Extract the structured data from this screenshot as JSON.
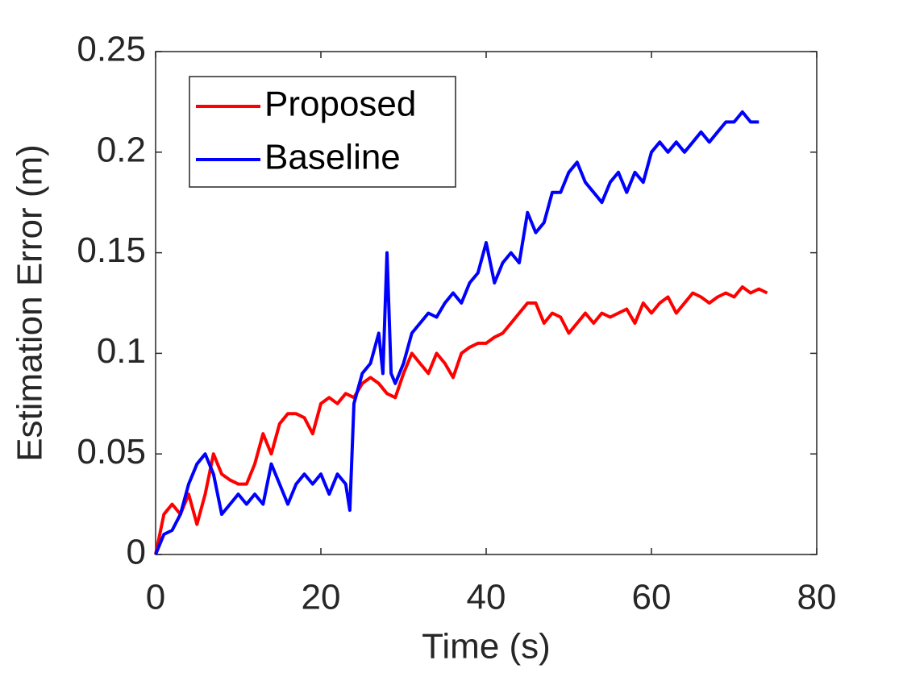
{
  "chart_data": {
    "type": "line",
    "xlabel": "Time (s)",
    "ylabel": "Estimation Error (m)",
    "xlim": [
      0,
      80
    ],
    "xticks": [
      0,
      20,
      40,
      60,
      80
    ],
    "ylim": [
      0,
      0.25
    ],
    "yticks": [
      0,
      0.05,
      0.1,
      0.15,
      0.2,
      0.25
    ],
    "grid": false,
    "legend_position": "upper-left",
    "series": [
      {
        "name": "Proposed",
        "color": "#ff0000",
        "x": [
          0,
          1,
          2,
          3,
          4,
          5,
          6,
          7,
          8,
          9,
          10,
          11,
          12,
          13,
          14,
          15,
          16,
          17,
          18,
          19,
          20,
          21,
          22,
          23,
          24,
          25,
          26,
          27,
          28,
          29,
          30,
          31,
          32,
          33,
          34,
          35,
          36,
          37,
          38,
          39,
          40,
          41,
          42,
          43,
          44,
          45,
          46,
          47,
          48,
          49,
          50,
          51,
          52,
          53,
          54,
          55,
          56,
          57,
          58,
          59,
          60,
          61,
          62,
          63,
          64,
          65,
          66,
          67,
          68,
          69,
          70,
          71,
          72,
          73,
          74
        ],
        "values": [
          0,
          0.02,
          0.025,
          0.02,
          0.03,
          0.015,
          0.03,
          0.05,
          0.04,
          0.037,
          0.035,
          0.035,
          0.045,
          0.06,
          0.05,
          0.065,
          0.07,
          0.07,
          0.068,
          0.06,
          0.075,
          0.078,
          0.075,
          0.08,
          0.078,
          0.085,
          0.088,
          0.085,
          0.08,
          0.078,
          0.09,
          0.1,
          0.095,
          0.09,
          0.1,
          0.095,
          0.088,
          0.1,
          0.103,
          0.105,
          0.105,
          0.108,
          0.11,
          0.115,
          0.12,
          0.125,
          0.125,
          0.115,
          0.12,
          0.118,
          0.11,
          0.115,
          0.12,
          0.115,
          0.12,
          0.118,
          0.12,
          0.122,
          0.115,
          0.125,
          0.12,
          0.125,
          0.128,
          0.12,
          0.125,
          0.13,
          0.128,
          0.125,
          0.128,
          0.13,
          0.128,
          0.133,
          0.13,
          0.132,
          0.13
        ]
      },
      {
        "name": "Baseline",
        "color": "#0000ff",
        "x": [
          0,
          1,
          2,
          3,
          4,
          5,
          6,
          7,
          8,
          9,
          10,
          11,
          12,
          13,
          14,
          15,
          16,
          17,
          18,
          19,
          20,
          21,
          22,
          23,
          23.5,
          24,
          25,
          26,
          27,
          27.5,
          28,
          28.5,
          29,
          30,
          31,
          32,
          33,
          34,
          35,
          36,
          37,
          38,
          39,
          40,
          41,
          42,
          43,
          44,
          45,
          46,
          47,
          48,
          49,
          50,
          51,
          52,
          53,
          54,
          55,
          56,
          57,
          58,
          59,
          60,
          61,
          62,
          63,
          64,
          65,
          66,
          67,
          68,
          69,
          70,
          71,
          72,
          73
        ],
        "values": [
          0,
          0.01,
          0.012,
          0.02,
          0.035,
          0.045,
          0.05,
          0.04,
          0.02,
          0.025,
          0.03,
          0.025,
          0.03,
          0.025,
          0.045,
          0.035,
          0.025,
          0.035,
          0.04,
          0.035,
          0.04,
          0.03,
          0.04,
          0.035,
          0.022,
          0.075,
          0.09,
          0.095,
          0.11,
          0.09,
          0.15,
          0.09,
          0.085,
          0.095,
          0.11,
          0.115,
          0.12,
          0.118,
          0.125,
          0.13,
          0.125,
          0.135,
          0.14,
          0.155,
          0.135,
          0.145,
          0.15,
          0.145,
          0.17,
          0.16,
          0.165,
          0.18,
          0.18,
          0.19,
          0.195,
          0.185,
          0.18,
          0.175,
          0.185,
          0.19,
          0.18,
          0.19,
          0.185,
          0.2,
          0.205,
          0.2,
          0.205,
          0.2,
          0.205,
          0.21,
          0.205,
          0.21,
          0.215,
          0.215,
          0.22,
          0.215,
          0.215
        ]
      }
    ]
  }
}
